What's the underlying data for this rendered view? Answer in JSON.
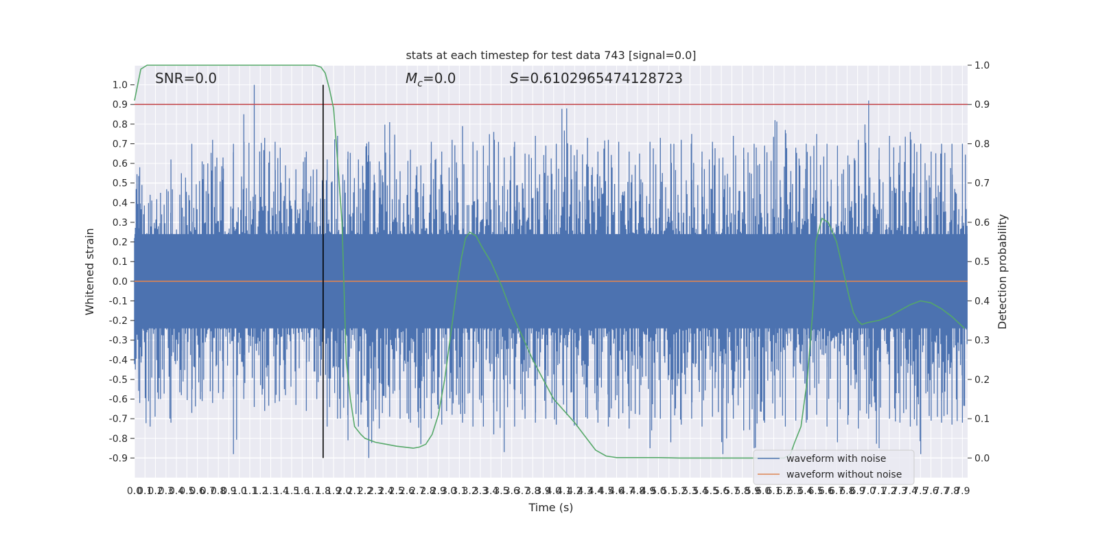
{
  "chart_data": {
    "type": "line",
    "title": "stats at each timestep for test data 743 [signal=0.0]",
    "xlabel": "Time (s)",
    "ylabel": "Whitened strain",
    "y2label": "Detection probability",
    "xlim": [
      0.0,
      7.95
    ],
    "ylim": [
      -1.0,
      1.1
    ],
    "y2lim": [
      -0.05,
      1.0
    ],
    "yticks": [
      "-0.9",
      "-0.8",
      "-0.7",
      "-0.6",
      "-0.5",
      "-0.4",
      "-0.3",
      "-0.2",
      "-0.1",
      "0.0",
      "0.1",
      "0.2",
      "0.3",
      "0.4",
      "0.5",
      "0.6",
      "0.7",
      "0.8",
      "0.9",
      "1.0"
    ],
    "y2ticks": [
      "0.0",
      "0.1",
      "0.2",
      "0.3",
      "0.4",
      "0.5",
      "0.6",
      "0.7",
      "0.8",
      "0.9",
      "1.0"
    ],
    "xticks": [
      "0.0",
      "0.1",
      "0.2",
      "0.3",
      "0.4",
      "0.5",
      "0.6",
      "0.7",
      "0.8",
      "0.9",
      "1.0",
      "1.1",
      "1.2",
      "1.3",
      "1.4",
      "1.5",
      "1.6",
      "1.7",
      "1.8",
      "1.9",
      "2.0",
      "2.1",
      "2.2",
      "2.3",
      "2.4",
      "2.5",
      "2.6",
      "2.7",
      "2.8",
      "2.9",
      "3.0",
      "3.1",
      "3.2",
      "3.3",
      "3.4",
      "3.5",
      "3.6",
      "3.7",
      "3.8",
      "3.9",
      "4.0",
      "4.1",
      "4.2",
      "4.3",
      "4.4",
      "4.5",
      "4.6",
      "4.7",
      "4.8",
      "4.9",
      "5.0",
      "5.1",
      "5.2",
      "5.3",
      "5.4",
      "5.5",
      "5.6",
      "5.7",
      "5.8",
      "5.9",
      "6.0",
      "6.1",
      "6.2",
      "6.3",
      "6.4",
      "6.5",
      "6.6",
      "6.7",
      "6.8",
      "6.9",
      "7.0",
      "7.1",
      "7.2",
      "7.3",
      "7.4",
      "7.5",
      "7.6",
      "7.7",
      "7.8",
      "7.9"
    ],
    "annotations": {
      "snr": "SNR=0.0",
      "mc_symbol": "M",
      "mc_sub": "c",
      "mc_value": "=0.0",
      "s_symbol": "S",
      "s_value": "=0.6102965474128723"
    },
    "series": [
      {
        "name": "waveform with noise",
        "color": "#4c72b0",
        "axis": "left",
        "envelope_upper": [
          0.58,
          0.44,
          0.45,
          0.62,
          0.55,
          0.7,
          0.61,
          0.72,
          0.63,
          0.7,
          0.85,
          1.0,
          0.73,
          0.71,
          0.59,
          0.57,
          0.66,
          0.57,
          0.62,
          0.74,
          0.66,
          0.62,
          0.71,
          0.61,
          0.81,
          0.56,
          0.67,
          0.59,
          0.71,
          0.66,
          0.72,
          0.79,
          0.71,
          0.69,
          0.76,
          0.63,
          0.71,
          0.65,
          0.74,
          0.69,
          0.7,
          0.88,
          0.67,
          0.73,
          0.66,
          0.72,
          0.71,
          0.66,
          0.65,
          0.71,
          0.73,
          0.7,
          0.72,
          0.75,
          0.66,
          0.71,
          0.63,
          0.74,
          0.68,
          0.7,
          0.69,
          0.82,
          0.77,
          0.68,
          0.7,
          0.75,
          0.7,
          0.69,
          0.64,
          0.72,
          0.92,
          0.68,
          0.74,
          0.69,
          0.76,
          0.7,
          0.66,
          0.7,
          0.7,
          0.7
        ],
        "envelope_lower": [
          -0.62,
          -0.74,
          -0.6,
          -0.72,
          -0.58,
          -0.67,
          -0.61,
          -0.62,
          -0.6,
          -0.88,
          -0.6,
          -0.64,
          -0.66,
          -0.62,
          -0.58,
          -0.63,
          -0.66,
          -0.6,
          -0.74,
          -0.7,
          -0.81,
          -0.74,
          -0.9,
          -0.75,
          -0.69,
          -0.7,
          -0.72,
          -0.83,
          -0.7,
          -0.73,
          -0.68,
          -0.72,
          -0.74,
          -0.74,
          -0.78,
          -0.87,
          -0.74,
          -0.7,
          -0.72,
          -0.7,
          -0.73,
          -0.68,
          -0.74,
          -0.7,
          -0.72,
          -0.74,
          -0.7,
          -0.75,
          -0.68,
          -0.85,
          -0.7,
          -0.82,
          -0.73,
          -0.7,
          -0.74,
          -0.69,
          -0.88,
          -0.7,
          -0.76,
          -0.85,
          -0.72,
          -0.7,
          -0.74,
          -0.71,
          -0.72,
          -0.68,
          -0.74,
          -0.82,
          -0.73,
          -0.75,
          -0.7,
          -0.85,
          -0.7,
          -0.72,
          -0.74,
          -0.88,
          -0.71,
          -0.72,
          -0.73,
          -0.72
        ]
      },
      {
        "name": "waveform without noise",
        "color": "#dd8452",
        "axis": "left",
        "x": [
          0.0,
          7.95
        ],
        "y": [
          0.0,
          0.0
        ]
      },
      {
        "name": "detection probability",
        "color": "#55a868",
        "axis": "right",
        "x": [
          0.0,
          0.06,
          0.12,
          0.2,
          0.4,
          0.8,
          1.2,
          1.4,
          1.6,
          1.72,
          1.78,
          1.82,
          1.86,
          1.9,
          1.94,
          1.98,
          2.02,
          2.06,
          2.1,
          2.16,
          2.2,
          2.3,
          2.4,
          2.5,
          2.6,
          2.66,
          2.72,
          2.78,
          2.84,
          2.9,
          2.96,
          3.02,
          3.08,
          3.12,
          3.16,
          3.2,
          3.26,
          3.32,
          3.4,
          3.5,
          3.6,
          3.7,
          3.8,
          3.9,
          4.0,
          4.1,
          4.2,
          4.3,
          4.4,
          4.5,
          4.6,
          4.8,
          5.0,
          5.2,
          5.4,
          5.6,
          5.8,
          6.0,
          6.2,
          6.26,
          6.3,
          6.36,
          6.42,
          6.48,
          6.5,
          6.56,
          6.62,
          6.7,
          6.76,
          6.82,
          6.86,
          6.9,
          6.94,
          7.0,
          7.1,
          7.2,
          7.3,
          7.4,
          7.5,
          7.6,
          7.7,
          7.8,
          7.92
        ],
        "y": [
          0.91,
          0.99,
          1.0,
          1.0,
          1.0,
          1.0,
          1.0,
          1.0,
          1.0,
          1.0,
          0.995,
          0.98,
          0.94,
          0.89,
          0.75,
          0.6,
          0.25,
          0.15,
          0.08,
          0.06,
          0.05,
          0.04,
          0.035,
          0.03,
          0.027,
          0.025,
          0.028,
          0.035,
          0.06,
          0.11,
          0.2,
          0.32,
          0.44,
          0.51,
          0.56,
          0.575,
          0.565,
          0.535,
          0.5,
          0.44,
          0.37,
          0.31,
          0.25,
          0.2,
          0.15,
          0.12,
          0.09,
          0.055,
          0.02,
          0.005,
          0.001,
          0.001,
          0.001,
          0.0,
          0.0,
          0.0,
          0.0,
          0.0,
          0.0,
          0.01,
          0.04,
          0.08,
          0.2,
          0.4,
          0.55,
          0.61,
          0.6,
          0.55,
          0.48,
          0.41,
          0.37,
          0.35,
          0.34,
          0.345,
          0.35,
          0.36,
          0.375,
          0.39,
          0.4,
          0.395,
          0.38,
          0.36,
          0.33
        ]
      },
      {
        "name": "",
        "color": "#c44e52",
        "axis": "right",
        "x": [
          0.0,
          7.95
        ],
        "y": [
          0.9,
          0.9
        ]
      }
    ],
    "vline": {
      "x": 1.8,
      "ymin": -0.9,
      "ymax": 1.0,
      "color": "#000000"
    },
    "legend": {
      "placement": "lower-right",
      "items": [
        {
          "label": "waveform with noise",
          "color": "#4c72b0"
        },
        {
          "label": "waveform without noise",
          "color": "#dd8452"
        }
      ]
    },
    "grid": true,
    "background": "#eaeaf2"
  }
}
